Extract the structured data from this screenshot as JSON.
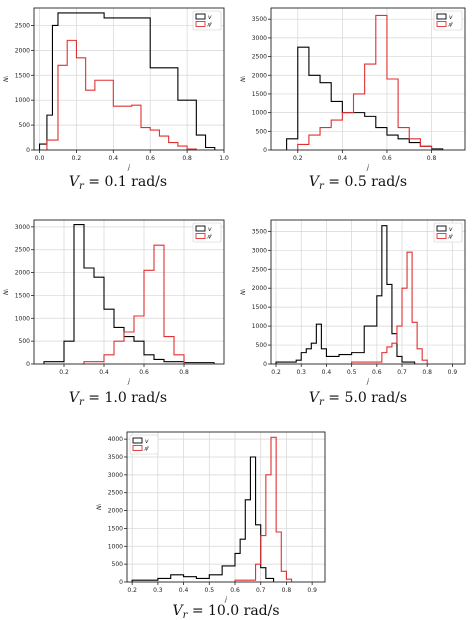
{
  "figure": {
    "captions": [
      "V_r = 0.1 rad/s",
      "V_r = 0.5 rad/s",
      "V_r = 1.0 rad/s",
      "V_r = 5.0 rad/s",
      "V_r = 10.0 rad/s"
    ]
  },
  "chart_data": [
    {
      "type": "histogram",
      "caption_var": "V",
      "caption_sub": "r",
      "caption_rest": " = 0.1 rad/s",
      "xlabel": "j",
      "ylabel": "Nₗ",
      "xlim": [
        -0.03,
        1.0
      ],
      "ylim": [
        0,
        2850
      ],
      "xticks": [
        0.0,
        0.2,
        0.4,
        0.6,
        0.8,
        1.0
      ],
      "xtick_labels": [
        "0.0",
        "0.2",
        "0.4",
        "0.6",
        "0.8",
        "1.0"
      ],
      "yticks": [
        0,
        500,
        1000,
        1500,
        2000,
        2500
      ],
      "ytick_labels": [
        "0",
        "500",
        "1000",
        "1500",
        "2000",
        "2500"
      ],
      "grid": true,
      "legend": "top-right",
      "series": [
        {
          "color": "#000000",
          "edges": [
            0.0,
            0.04,
            0.07,
            0.1,
            0.35,
            0.6,
            0.75,
            0.85,
            0.9,
            0.95
          ],
          "counts": [
            120,
            700,
            2500,
            2750,
            2650,
            1650,
            1000,
            300,
            50
          ]
        },
        {
          "color": "#e03030",
          "edges": [
            0.04,
            0.1,
            0.15,
            0.2,
            0.25,
            0.3,
            0.35,
            0.4,
            0.5,
            0.55,
            0.6,
            0.65,
            0.7,
            0.75,
            0.8,
            0.85
          ],
          "counts": [
            200,
            1700,
            2200,
            1850,
            1200,
            1400,
            1400,
            880,
            900,
            450,
            400,
            280,
            150,
            80,
            20
          ]
        }
      ],
      "legend_labels": [
        "v",
        "v̸"
      ]
    },
    {
      "type": "histogram",
      "caption_var": "V",
      "caption_sub": "r",
      "caption_rest": " = 0.5 rad/s",
      "xlabel": "j",
      "ylabel": "Nₗ",
      "xlim": [
        0.08,
        0.95
      ],
      "ylim": [
        0,
        3800
      ],
      "xticks": [
        0.2,
        0.4,
        0.6,
        0.8
      ],
      "xtick_labels": [
        "0.2",
        "0.4",
        "0.6",
        "0.8"
      ],
      "yticks": [
        0,
        500,
        1000,
        1500,
        2000,
        2500,
        3000,
        3500
      ],
      "ytick_labels": [
        "0",
        "500",
        "1000",
        "1500",
        "2000",
        "2500",
        "3000",
        "3500"
      ],
      "grid": true,
      "legend": "top-right",
      "series": [
        {
          "color": "#000000",
          "edges": [
            0.15,
            0.2,
            0.25,
            0.3,
            0.35,
            0.4,
            0.45,
            0.5,
            0.55,
            0.6,
            0.65,
            0.7,
            0.75,
            0.8,
            0.85
          ],
          "counts": [
            300,
            2750,
            2000,
            1800,
            1300,
            1000,
            1000,
            900,
            600,
            400,
            300,
            200,
            100,
            30
          ]
        },
        {
          "color": "#e03030",
          "edges": [
            0.2,
            0.25,
            0.3,
            0.35,
            0.4,
            0.45,
            0.5,
            0.55,
            0.6,
            0.65,
            0.7,
            0.75,
            0.8
          ],
          "counts": [
            150,
            400,
            600,
            800,
            1000,
            1500,
            2300,
            3600,
            1900,
            600,
            300,
            100
          ]
        }
      ],
      "legend_labels": [
        "v",
        "v̸"
      ]
    },
    {
      "type": "histogram",
      "caption_var": "V",
      "caption_sub": "r",
      "caption_rest": " = 1.0 rad/s",
      "xlabel": "j",
      "ylabel": "Nₗ",
      "xlim": [
        0.05,
        1.0
      ],
      "ylim": [
        0,
        3150
      ],
      "xticks": [
        0.2,
        0.4,
        0.6,
        0.8
      ],
      "xtick_labels": [
        "0.2",
        "0.4",
        "0.6",
        "0.8"
      ],
      "yticks": [
        0,
        500,
        1000,
        1500,
        2000,
        2500,
        3000
      ],
      "ytick_labels": [
        "0",
        "500",
        "1000",
        "1500",
        "2000",
        "2500",
        "3000"
      ],
      "grid": true,
      "legend": "top-right",
      "series": [
        {
          "color": "#000000",
          "edges": [
            0.1,
            0.2,
            0.25,
            0.3,
            0.35,
            0.4,
            0.45,
            0.5,
            0.55,
            0.6,
            0.65,
            0.7,
            0.75,
            0.8,
            0.95
          ],
          "counts": [
            50,
            500,
            3050,
            2100,
            1900,
            1200,
            800,
            600,
            500,
            200,
            100,
            50,
            50,
            30
          ]
        },
        {
          "color": "#e03030",
          "edges": [
            0.3,
            0.4,
            0.45,
            0.5,
            0.55,
            0.6,
            0.65,
            0.7,
            0.75,
            0.8
          ],
          "counts": [
            50,
            200,
            500,
            700,
            1050,
            2050,
            2600,
            600,
            200
          ]
        }
      ],
      "legend_labels": [
        "v",
        "v̸"
      ]
    },
    {
      "type": "histogram",
      "caption_var": "V",
      "caption_sub": "r",
      "caption_rest": " = 5.0 rad/s",
      "xlabel": "j",
      "ylabel": "Nₗ",
      "xlim": [
        0.18,
        0.95
      ],
      "ylim": [
        0,
        3800
      ],
      "xticks": [
        0.2,
        0.3,
        0.4,
        0.5,
        0.6,
        0.7,
        0.8,
        0.9
      ],
      "xtick_labels": [
        "0.2",
        "0.3",
        "0.4",
        "0.5",
        "0.6",
        "0.7",
        "0.8",
        "0.9"
      ],
      "yticks": [
        0,
        500,
        1000,
        1500,
        2000,
        2500,
        3000,
        3500
      ],
      "ytick_labels": [
        "0",
        "500",
        "1000",
        "1500",
        "2000",
        "2500",
        "3000",
        "3500"
      ],
      "grid": true,
      "legend": "top-right",
      "series": [
        {
          "color": "#000000",
          "edges": [
            0.2,
            0.28,
            0.3,
            0.32,
            0.34,
            0.36,
            0.38,
            0.4,
            0.45,
            0.5,
            0.55,
            0.6,
            0.62,
            0.64,
            0.66,
            0.68,
            0.7,
            0.75
          ],
          "counts": [
            50,
            100,
            300,
            400,
            550,
            1050,
            400,
            200,
            250,
            300,
            1000,
            1800,
            3650,
            2100,
            800,
            200,
            50
          ]
        },
        {
          "color": "#e03030",
          "edges": [
            0.5,
            0.62,
            0.64,
            0.66,
            0.68,
            0.7,
            0.72,
            0.74,
            0.76,
            0.78,
            0.8
          ],
          "counts": [
            50,
            300,
            450,
            550,
            1000,
            2000,
            2950,
            1100,
            400,
            100
          ]
        }
      ],
      "legend_labels": [
        "v",
        "v̸"
      ]
    },
    {
      "type": "histogram",
      "caption_var": "V",
      "caption_sub": "r",
      "caption_rest": " = 10.0 rad/s",
      "xlabel": "j",
      "ylabel": "Nₗ",
      "xlim": [
        0.18,
        0.95
      ],
      "ylim": [
        0,
        4200
      ],
      "xticks": [
        0.2,
        0.3,
        0.4,
        0.5,
        0.6,
        0.7,
        0.8,
        0.9
      ],
      "xtick_labels": [
        "0.2",
        "0.3",
        "0.4",
        "0.5",
        "0.6",
        "0.7",
        "0.8",
        "0.9"
      ],
      "yticks": [
        0,
        500,
        1000,
        1500,
        2000,
        2500,
        3000,
        3500,
        4000
      ],
      "ytick_labels": [
        "0",
        "500",
        "1000",
        "1500",
        "2000",
        "2500",
        "3000",
        "3500",
        "4000"
      ],
      "grid": true,
      "legend": "top-left",
      "series": [
        {
          "color": "#000000",
          "edges": [
            0.2,
            0.3,
            0.35,
            0.4,
            0.45,
            0.5,
            0.55,
            0.6,
            0.62,
            0.64,
            0.66,
            0.68,
            0.7,
            0.72,
            0.75
          ],
          "counts": [
            50,
            100,
            200,
            150,
            100,
            200,
            450,
            800,
            1200,
            2300,
            3500,
            1600,
            400,
            100
          ]
        },
        {
          "color": "#e03030",
          "edges": [
            0.6,
            0.68,
            0.7,
            0.72,
            0.74,
            0.76,
            0.78,
            0.8,
            0.82
          ],
          "counts": [
            50,
            500,
            1300,
            3000,
            4050,
            1400,
            300,
            80
          ]
        }
      ],
      "legend_labels": [
        "v",
        "v̸"
      ]
    }
  ]
}
